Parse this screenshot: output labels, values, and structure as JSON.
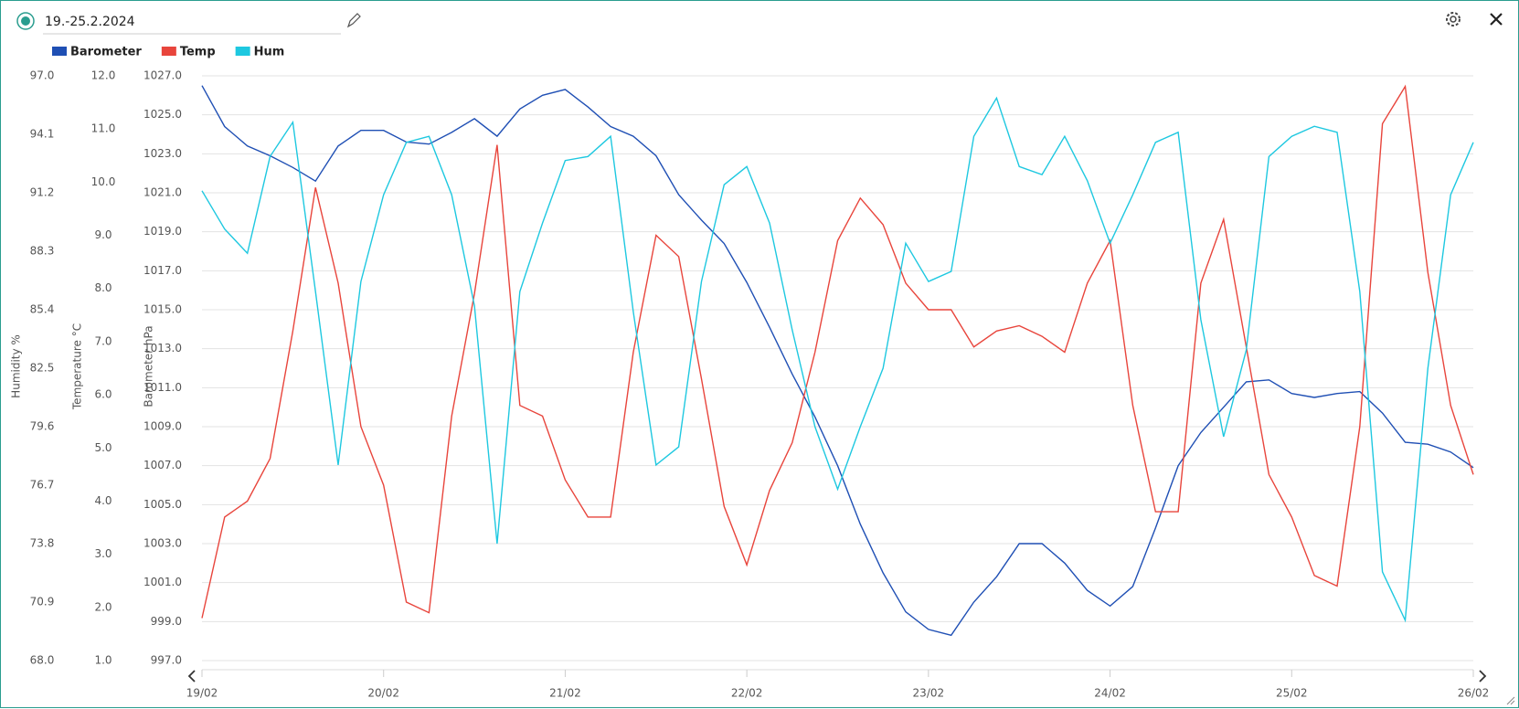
{
  "chart_data": {
    "type": "line",
    "title": "19.-25.2.2024",
    "ylabel": "Barometer hPa",
    "y2label": "Temperature °C",
    "y3label": "Humidity %",
    "grid": true,
    "legend": "top-left",
    "x": [
      0,
      0.125,
      0.25,
      0.375,
      0.5,
      0.625,
      0.75,
      0.875,
      1,
      1.125,
      1.25,
      1.375,
      1.5,
      1.625,
      1.75,
      1.875,
      2,
      2.125,
      2.25,
      2.375,
      2.5,
      2.625,
      2.75,
      2.875,
      3,
      3.125,
      3.25,
      3.375,
      3.5,
      3.625,
      3.75,
      3.875,
      4,
      4.125,
      4.25,
      4.375,
      4.5,
      4.625,
      4.75,
      4.875,
      5,
      5.125,
      5.25,
      5.375,
      5.5,
      5.625,
      5.75,
      5.875,
      6,
      6.125,
      6.25,
      6.375,
      6.5,
      6.625,
      6.75,
      6.875,
      7
    ],
    "xlim": [
      0,
      7
    ],
    "xticks": [
      {
        "value": 0,
        "label": "19/02"
      },
      {
        "value": 1,
        "label": "20/02"
      },
      {
        "value": 2,
        "label": "21/02"
      },
      {
        "value": 3,
        "label": "22/02"
      },
      {
        "value": 4,
        "label": "23/02"
      },
      {
        "value": 5,
        "label": "24/02"
      },
      {
        "value": 6,
        "label": "25/02"
      },
      {
        "value": 7,
        "label": "26/02"
      }
    ],
    "ylim": [
      997,
      1027
    ],
    "yticks": [
      {
        "value": 997,
        "label": "997.0"
      },
      {
        "value": 999,
        "label": "999.0"
      },
      {
        "value": 1001,
        "label": "1001.0"
      },
      {
        "value": 1003,
        "label": "1003.0"
      },
      {
        "value": 1005,
        "label": "1005.0"
      },
      {
        "value": 1007,
        "label": "1007.0"
      },
      {
        "value": 1009,
        "label": "1009.0"
      },
      {
        "value": 1011,
        "label": "1011.0"
      },
      {
        "value": 1013,
        "label": "1013.0"
      },
      {
        "value": 1015,
        "label": "1015.0"
      },
      {
        "value": 1017,
        "label": "1017.0"
      },
      {
        "value": 1019,
        "label": "1019.0"
      },
      {
        "value": 1021,
        "label": "1021.0"
      },
      {
        "value": 1023,
        "label": "1023.0"
      },
      {
        "value": 1025,
        "label": "1025.0"
      },
      {
        "value": 1027,
        "label": "1027.0"
      }
    ],
    "y2lim": [
      1,
      12
    ],
    "y2ticks": [
      {
        "value": 1,
        "label": "1.0"
      },
      {
        "value": 2,
        "label": "2.0"
      },
      {
        "value": 3,
        "label": "3.0"
      },
      {
        "value": 4,
        "label": "4.0"
      },
      {
        "value": 5,
        "label": "5.0"
      },
      {
        "value": 6,
        "label": "6.0"
      },
      {
        "value": 7,
        "label": "7.0"
      },
      {
        "value": 8,
        "label": "8.0"
      },
      {
        "value": 9,
        "label": "9.0"
      },
      {
        "value": 10,
        "label": "10.0"
      },
      {
        "value": 11,
        "label": "11.0"
      },
      {
        "value": 12,
        "label": "12.0"
      }
    ],
    "y3lim": [
      68,
      97
    ],
    "y3ticks": [
      {
        "value": 68,
        "label": "68.0"
      },
      70.9,
      73.8,
      76.7,
      79.6,
      82.5,
      85.4,
      88.3,
      91.2,
      94.1,
      {
        "value": 97,
        "label": "97.0"
      }
    ],
    "series": [
      {
        "name": "Barometer",
        "color": "#1f4fb4",
        "axis": "y",
        "values": [
          1026.5,
          1024.4,
          1023.4,
          1022.9,
          1022.3,
          1021.6,
          1023.4,
          1024.2,
          1024.2,
          1023.6,
          1023.5,
          1024.1,
          1024.8,
          1023.9,
          1025.3,
          1026.0,
          1026.3,
          1025.4,
          1024.4,
          1023.9,
          1022.9,
          1020.9,
          1019.6,
          1018.4,
          1016.4,
          1014.1,
          1011.7,
          1009.5,
          1007.0,
          1004.0,
          1001.5,
          999.5,
          998.6,
          998.3,
          1000.0,
          1001.3,
          1003.0,
          1003.0,
          1002.0,
          1000.6,
          999.8,
          1000.8,
          1003.8,
          1007.0,
          1008.7,
          1010.0,
          1011.3,
          1011.4,
          1010.7,
          1010.5,
          1010.7,
          1010.8,
          1009.7,
          1008.2,
          1008.1,
          1007.7,
          1006.9
        ]
      },
      {
        "name": "Temp",
        "color": "#e8453c",
        "axis": "y2",
        "values": [
          1.8,
          3.7,
          4.0,
          4.8,
          7.2,
          9.9,
          8.1,
          5.4,
          4.3,
          2.1,
          1.9,
          5.6,
          7.9,
          10.7,
          5.8,
          5.6,
          4.4,
          3.7,
          3.7,
          6.8,
          9.0,
          8.6,
          6.3,
          3.9,
          2.8,
          4.2,
          5.1,
          6.8,
          8.9,
          9.7,
          9.2,
          8.1,
          7.6,
          7.6,
          6.9,
          7.2,
          7.3,
          7.1,
          6.8,
          8.1,
          8.9,
          5.8,
          3.8,
          3.8,
          8.1,
          9.3,
          6.9,
          4.5,
          3.7,
          2.6,
          2.4,
          5.4,
          11.1,
          11.8,
          8.3,
          5.8,
          4.5
        ]
      },
      {
        "name": "Hum",
        "color": "#1ec8e0",
        "axis": "y3",
        "values": [
          91.3,
          89.4,
          88.2,
          93.0,
          94.7,
          86.3,
          77.7,
          86.8,
          91.1,
          93.7,
          94.0,
          91.1,
          85.6,
          73.8,
          86.3,
          89.7,
          92.8,
          93.0,
          94.0,
          85.3,
          77.7,
          78.6,
          86.8,
          91.6,
          92.5,
          89.7,
          84.4,
          79.6,
          76.5,
          79.6,
          82.5,
          88.7,
          86.8,
          87.3,
          94.0,
          95.9,
          92.5,
          92.1,
          94.0,
          91.8,
          88.7,
          91.1,
          93.7,
          94.2,
          84.9,
          79.1,
          83.4,
          93.0,
          94.0,
          94.5,
          94.2,
          86.3,
          72.4,
          70.0,
          82.5,
          91.1,
          93.7
        ]
      }
    ]
  }
}
